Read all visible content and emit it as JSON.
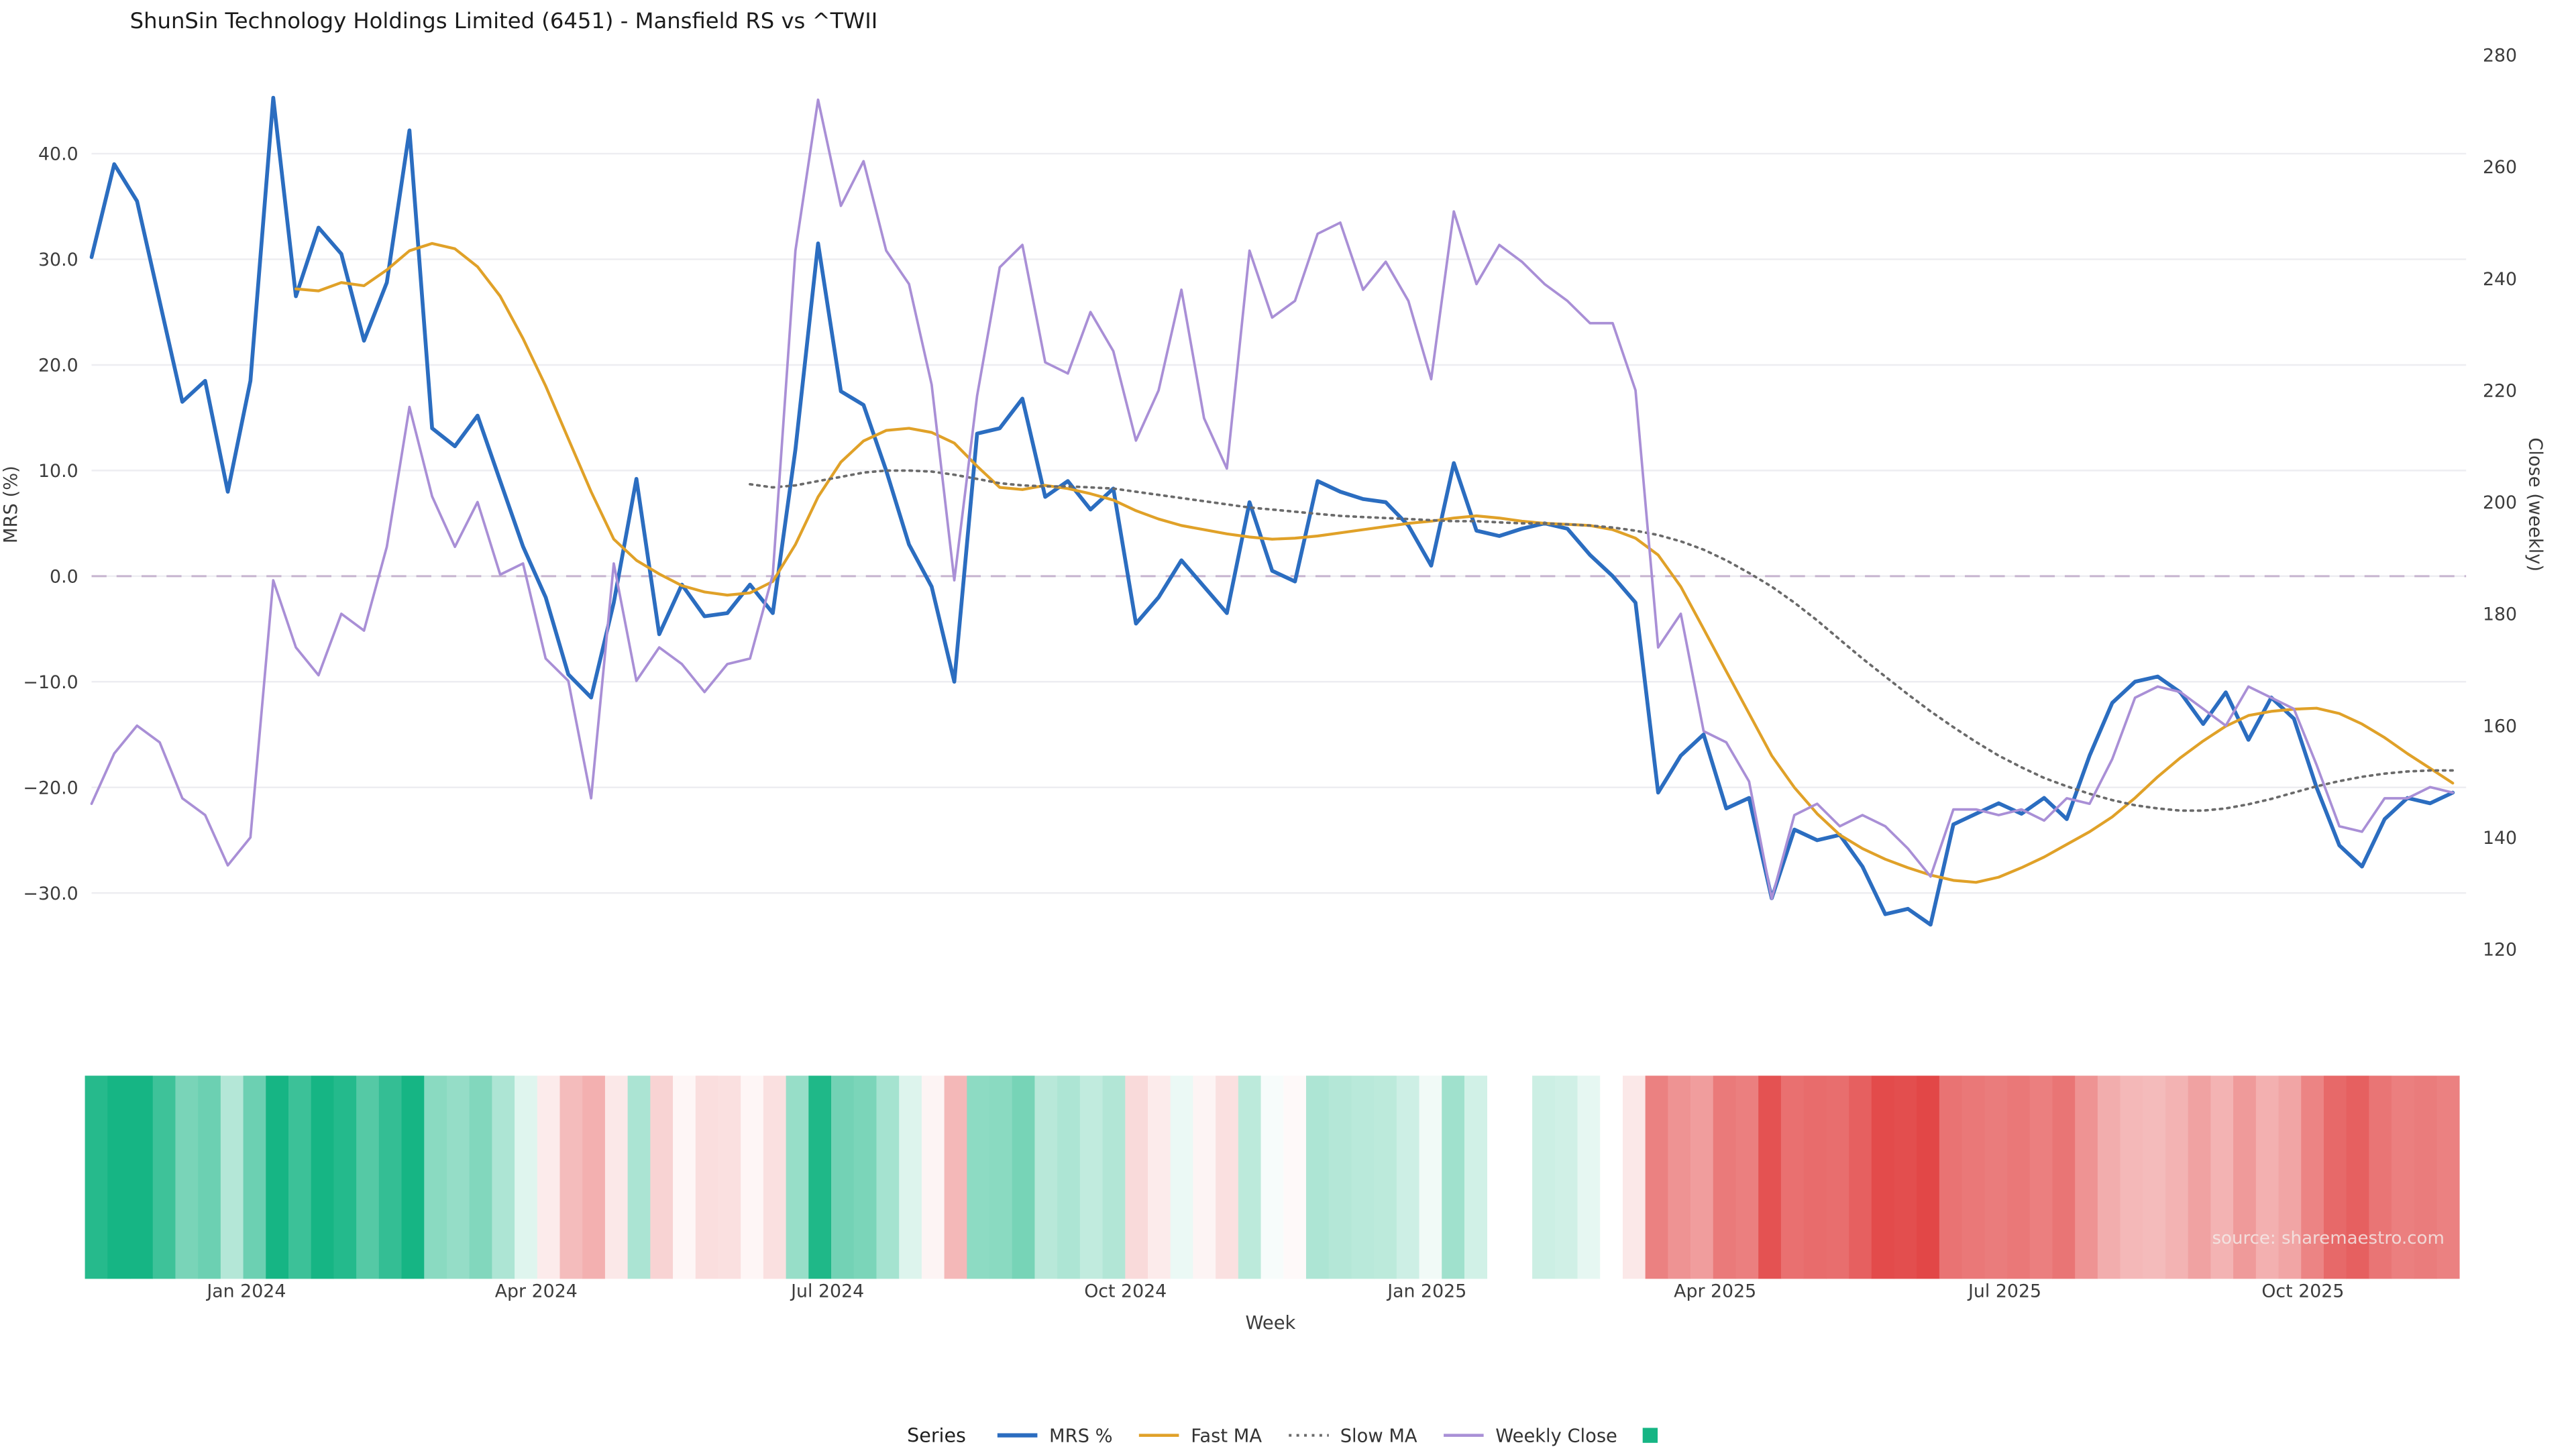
{
  "page": {
    "background": "#ffffff"
  },
  "source_text": "source: sharemaestro.com",
  "legend": {
    "title": "Series",
    "items": [
      {
        "id": "mrs",
        "label": "MRS %",
        "swatch": "line",
        "style": "solid",
        "color": "#2b6dc0",
        "width": 2.5
      },
      {
        "id": "fast-ma",
        "label": "Fast MA",
        "swatch": "line",
        "style": "solid",
        "color": "#e0a128",
        "width": 1.8
      },
      {
        "id": "slow-ma",
        "label": "Slow MA",
        "swatch": "line",
        "style": "dotted",
        "color": "#6a6a6a",
        "width": 1.6
      },
      {
        "id": "weekly-close",
        "label": "Weekly Close",
        "swatch": "line",
        "style": "solid",
        "color": "#a98fd6",
        "width": 1.8
      },
      {
        "id": "rs-heat",
        "label": "",
        "swatch": "square",
        "color": "#16b584"
      }
    ]
  },
  "chart_data": {
    "type": "line",
    "title": "ShunSin Technology Holdings Limited (6451) - Mansfield RS vs ^TWII",
    "x_axis": {
      "label": "Week",
      "weeks_total": 105,
      "ticks": [
        {
          "label": "Jan 2024",
          "week": 6.82
        },
        {
          "label": "Apr 2024",
          "week": 19.58
        },
        {
          "label": "Jul 2024",
          "week": 32.42
        },
        {
          "label": "Oct 2024",
          "week": 45.54
        },
        {
          "label": "Jan 2025",
          "week": 58.82
        },
        {
          "label": "Apr 2025",
          "week": 71.51
        },
        {
          "label": "Jul 2025",
          "week": 84.27
        },
        {
          "label": "Oct 2025",
          "week": 97.4
        }
      ]
    },
    "y_axis_left": {
      "label": "MRS (%)",
      "ticks": [
        {
          "value": 40,
          "label": "40.0"
        },
        {
          "value": 30,
          "label": "30.0"
        },
        {
          "value": 20,
          "label": "20.0"
        },
        {
          "value": 10,
          "label": "10.0"
        },
        {
          "value": 0,
          "label": "0.0"
        },
        {
          "value": -10,
          "label": "−10.0"
        },
        {
          "value": -20,
          "label": "−20.0"
        },
        {
          "value": -30,
          "label": "−30.0"
        }
      ]
    },
    "y_axis_right": {
      "label": "Close (weekly)",
      "ticks": [
        {
          "value": 280,
          "label": "280"
        },
        {
          "value": 260,
          "label": "260"
        },
        {
          "value": 240,
          "label": "240"
        },
        {
          "value": 220,
          "label": "220"
        },
        {
          "value": 200,
          "label": "200"
        },
        {
          "value": 180,
          "label": "180"
        },
        {
          "value": 160,
          "label": "160"
        },
        {
          "value": 140,
          "label": "140"
        },
        {
          "value": 120,
          "label": "120"
        }
      ]
    },
    "zero_line": {
      "value": 0.0,
      "style": "dashed",
      "color": "#c6b4cf"
    },
    "heatmap": {
      "source_series": "MRS %",
      "positive_color": "#16b584",
      "negative_color": "#e24747",
      "max_abs": 33,
      "gap_weeks": [
        62,
        63
      ]
    },
    "series": [
      {
        "id": "mrs",
        "name": "MRS %",
        "axis": "left",
        "color": "#2b6dc0",
        "style": "solid",
        "width": 2.3,
        "values": [
          30.2,
          39.0,
          35.5,
          26.0,
          16.5,
          18.5,
          8.0,
          18.5,
          45.3,
          26.5,
          33.0,
          30.5,
          22.3,
          27.8,
          42.2,
          14.0,
          12.3,
          15.2,
          9.0,
          2.8,
          -2.0,
          -9.3,
          -11.5,
          -2.5,
          9.2,
          -5.5,
          -0.8,
          -3.8,
          -3.5,
          -0.8,
          -3.5,
          12.0,
          31.5,
          17.5,
          16.2,
          10.0,
          3.0,
          -1.0,
          -10.0,
          13.5,
          14.0,
          16.8,
          7.5,
          9.0,
          6.3,
          8.3,
          -4.5,
          -2.0,
          1.5,
          -1.0,
          -3.5,
          7.0,
          0.5,
          -0.5,
          9.0,
          8.0,
          7.3,
          7.0,
          4.8,
          1.0,
          10.7,
          4.3,
          3.8,
          4.5,
          5.0,
          4.5,
          2.0,
          0.0,
          -2.5,
          -20.5,
          -17.0,
          -15.0,
          -22.0,
          -21.0,
          -30.5,
          -24.0,
          -25.0,
          -24.5,
          -27.5,
          -32.0,
          -31.5,
          -33.0,
          -23.5,
          -22.5,
          -21.5,
          -22.5,
          -21.0,
          -23.0,
          -17.0,
          -12.0,
          -10.0,
          -9.5,
          -11.0,
          -14.0,
          -11.0,
          -15.5,
          -11.5,
          -13.5,
          -20.0,
          -25.5,
          -27.5,
          -23.0,
          -21.0,
          -21.5,
          -20.5
        ]
      },
      {
        "id": "fast-ma",
        "name": "Fast MA",
        "axis": "left",
        "color": "#e0a128",
        "style": "solid",
        "width": 1.7,
        "values": [
          null,
          null,
          null,
          null,
          null,
          null,
          null,
          null,
          null,
          27.2,
          27.0,
          27.8,
          27.5,
          29.0,
          30.8,
          31.5,
          31.0,
          29.3,
          26.5,
          22.5,
          18.0,
          13.0,
          8.0,
          3.5,
          1.5,
          0.2,
          -0.9,
          -1.5,
          -1.8,
          -1.6,
          -0.5,
          3.0,
          7.5,
          10.8,
          12.8,
          13.8,
          14.0,
          13.6,
          12.6,
          10.4,
          8.4,
          8.2,
          8.6,
          8.3,
          7.8,
          7.2,
          6.2,
          5.4,
          4.8,
          4.4,
          4.0,
          3.7,
          3.5,
          3.6,
          3.8,
          4.1,
          4.4,
          4.7,
          5.0,
          5.2,
          5.5,
          5.7,
          5.5,
          5.2,
          5.0,
          4.9,
          4.8,
          4.4,
          3.6,
          2.0,
          -1.0,
          -5.0,
          -9.0,
          -13.0,
          -17.0,
          -20.0,
          -22.5,
          -24.5,
          -25.8,
          -26.8,
          -27.6,
          -28.3,
          -28.8,
          -29.0,
          -28.5,
          -27.6,
          -26.6,
          -25.4,
          -24.2,
          -22.8,
          -21.0,
          -19.0,
          -17.2,
          -15.6,
          -14.2,
          -13.2,
          -12.8,
          -12.6,
          -12.5,
          -13.0,
          -14.0,
          -15.3,
          -16.8,
          -18.2,
          -19.6
        ]
      },
      {
        "id": "slow-ma",
        "name": "Slow MA",
        "axis": "left",
        "color": "#6a6a6a",
        "style": "dotted",
        "width": 1.5,
        "values": [
          null,
          null,
          null,
          null,
          null,
          null,
          null,
          null,
          null,
          null,
          null,
          null,
          null,
          null,
          null,
          null,
          null,
          null,
          null,
          null,
          null,
          null,
          null,
          null,
          null,
          null,
          null,
          null,
          null,
          8.7,
          8.4,
          8.6,
          9.0,
          9.4,
          9.8,
          10.0,
          10.0,
          9.9,
          9.6,
          9.2,
          8.8,
          8.6,
          8.5,
          8.5,
          8.4,
          8.3,
          8.0,
          7.7,
          7.4,
          7.1,
          6.8,
          6.5,
          6.3,
          6.1,
          5.9,
          5.7,
          5.6,
          5.5,
          5.4,
          5.3,
          5.2,
          5.2,
          5.1,
          5.0,
          5.0,
          4.9,
          4.8,
          4.6,
          4.3,
          3.9,
          3.3,
          2.5,
          1.5,
          0.3,
          -1.0,
          -2.5,
          -4.2,
          -6.0,
          -7.8,
          -9.5,
          -11.2,
          -12.8,
          -14.3,
          -15.7,
          -17.0,
          -18.1,
          -19.1,
          -19.9,
          -20.6,
          -21.2,
          -21.7,
          -22.0,
          -22.2,
          -22.2,
          -22.0,
          -21.6,
          -21.1,
          -20.5,
          -19.9,
          -19.4,
          -19.0,
          -18.7,
          -18.5,
          -18.4,
          -18.4
        ]
      },
      {
        "id": "weekly-close",
        "name": "Weekly Close",
        "axis": "right",
        "color": "#a98fd6",
        "style": "solid",
        "width": 1.5,
        "values": [
          146,
          155,
          160,
          157,
          147,
          144,
          135,
          140,
          186,
          174,
          169,
          180,
          177,
          192,
          217,
          201,
          192,
          200,
          187,
          189,
          172,
          168,
          147,
          189,
          168,
          174,
          171,
          166,
          171,
          172,
          187,
          245,
          272,
          253,
          261,
          245,
          239,
          221,
          186,
          219,
          242,
          246,
          225,
          223,
          234,
          227,
          211,
          220,
          238,
          215,
          206,
          245,
          233,
          236,
          248,
          250,
          238,
          243,
          236,
          222,
          252,
          239,
          246,
          243,
          239,
          236,
          232,
          232,
          220,
          174,
          180,
          159,
          157,
          150,
          129,
          144,
          146,
          142,
          144,
          142,
          138,
          133,
          145,
          145,
          144,
          145,
          143,
          147,
          146,
          154,
          165,
          167,
          166,
          163,
          160,
          167,
          165,
          163,
          153,
          142,
          141,
          147,
          147,
          149,
          148
        ]
      }
    ]
  }
}
